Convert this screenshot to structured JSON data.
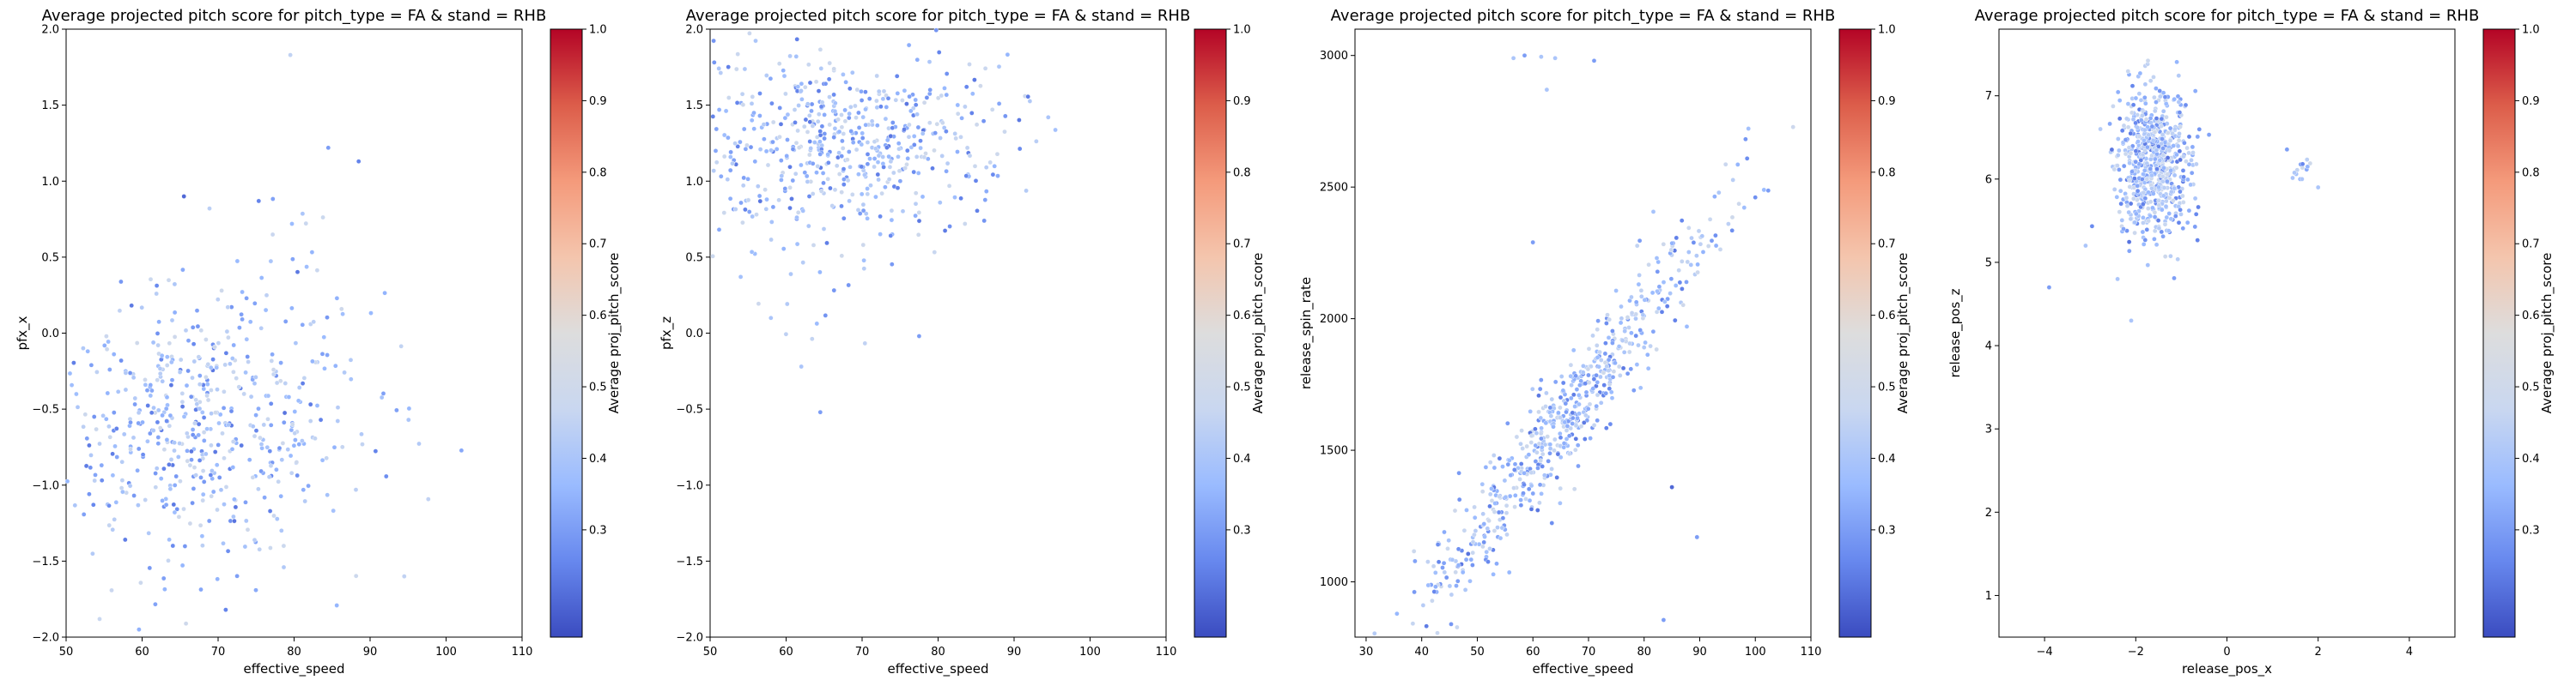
{
  "colorbar_ticks": [
    0.3,
    0.4,
    0.5,
    0.6,
    0.7,
    0.8,
    0.9,
    1.0
  ],
  "colormap": [
    "#3b4cc0",
    "#6788ee",
    "#9abbff",
    "#c9d7f0",
    "#dddddd",
    "#f4c5ad",
    "#f49a7b",
    "#dc5d4a",
    "#b40426"
  ],
  "chart_data": [
    {
      "type": "scatter",
      "title": "Average projected pitch score for pitch_type = FA & stand = RHB",
      "xlabel": "effective_speed",
      "ylabel": "pfx_x",
      "colorbar_label": "Average proj_pitch_score",
      "xlim": [
        50,
        110
      ],
      "ylim": [
        -2.0,
        2.0
      ],
      "colorbar_range": [
        0.15,
        1.0
      ],
      "xticks": [
        "50",
        "60",
        "70",
        "80",
        "90",
        "100",
        "110"
      ],
      "yticks": [
        "−2.0",
        "−1.5",
        "−1.0",
        "−0.5",
        "0.0",
        "0.5",
        "1.0",
        "1.5",
        "2.0"
      ],
      "clusters": [
        {
          "x_center": 66,
          "y_center": -0.6,
          "x_spread": 11,
          "y_spread": 0.45,
          "count": 560
        },
        {
          "x_center": 80,
          "y_center": 0.6,
          "x_spread": 3,
          "y_spread": 0.3,
          "count": 20
        }
      ],
      "points": [
        {
          "x": 79.5,
          "y": 1.83,
          "c": 0.45
        },
        {
          "x": 84.5,
          "y": 1.22,
          "c": 0.3
        },
        {
          "x": 88.5,
          "y": 1.13,
          "c": 0.25
        },
        {
          "x": 65.5,
          "y": 0.9,
          "c": 0.2
        },
        {
          "x": 94.5,
          "y": -1.6,
          "c": 0.45
        },
        {
          "x": 71,
          "y": -1.82,
          "c": 0.25
        }
      ]
    },
    {
      "type": "scatter",
      "title": "Average projected pitch score for pitch_type = FA & stand = RHB",
      "xlabel": "effective_speed",
      "ylabel": "pfx_z",
      "colorbar_label": "Average proj_pitch_score",
      "xlim": [
        50,
        110
      ],
      "ylim": [
        -2.0,
        2.0
      ],
      "colorbar_range": [
        0.15,
        1.0
      ],
      "xticks": [
        "50",
        "60",
        "70",
        "80",
        "90",
        "100",
        "110"
      ],
      "yticks": [
        "−2.0",
        "−1.5",
        "−1.0",
        "−0.5",
        "0.0",
        "0.5",
        "1.0",
        "1.5",
        "2.0"
      ],
      "clusters": [
        {
          "x_center": 68,
          "y_center": 1.25,
          "x_spread": 11,
          "y_spread": 0.3,
          "count": 560
        },
        {
          "x_center": 62,
          "y_center": 0.5,
          "x_spread": 7,
          "y_spread": 0.35,
          "count": 25
        }
      ],
      "points": [
        {
          "x": 64.5,
          "y": -0.52,
          "c": 0.3
        },
        {
          "x": 62,
          "y": -0.22,
          "c": 0.4
        },
        {
          "x": 58,
          "y": 0.1,
          "c": 0.4
        },
        {
          "x": 77.5,
          "y": -0.02,
          "c": 0.3
        },
        {
          "x": 94.5,
          "y": 1.42,
          "c": 0.4
        }
      ]
    },
    {
      "type": "scatter",
      "title": "Average projected pitch score for pitch_type = FA & stand = RHB",
      "xlabel": "effective_speed",
      "ylabel": "release_spin_rate",
      "colorbar_label": "Average proj_pitch_score",
      "xlim": [
        28,
        110
      ],
      "ylim": [
        790,
        3100
      ],
      "colorbar_range": [
        0.15,
        1.0
      ],
      "xticks": [
        "30",
        "40",
        "50",
        "60",
        "70",
        "80",
        "90",
        "100",
        "110"
      ],
      "yticks": [
        "1000",
        "1500",
        "2000",
        "2500",
        "3000"
      ],
      "clusters": [
        {
          "x_center": 66,
          "y_center": 1620,
          "x_spread": 13,
          "y_spread": 110,
          "count": 620,
          "slope": 27
        }
      ],
      "points": [
        {
          "x": 56.5,
          "y": 2990,
          "c": 0.4
        },
        {
          "x": 58.5,
          "y": 3000,
          "c": 0.3
        },
        {
          "x": 61.5,
          "y": 2995,
          "c": 0.4
        },
        {
          "x": 64,
          "y": 2990,
          "c": 0.4
        },
        {
          "x": 71,
          "y": 2980,
          "c": 0.3
        },
        {
          "x": 62.5,
          "y": 2870,
          "c": 0.4
        },
        {
          "x": 85,
          "y": 1360,
          "c": 0.2
        },
        {
          "x": 89.5,
          "y": 1170,
          "c": 0.3
        },
        {
          "x": 83.5,
          "y": 855,
          "c": 0.3
        },
        {
          "x": 60,
          "y": 2290,
          "c": 0.3
        }
      ]
    },
    {
      "type": "scatter",
      "title": "Average projected pitch score for pitch_type = FA & stand = RHB",
      "xlabel": "release_pos_x",
      "ylabel": "release_pos_z",
      "colorbar_label": "Average proj_pitch_score",
      "xlim": [
        -5,
        5
      ],
      "ylim": [
        0.5,
        7.8
      ],
      "colorbar_range": [
        0.15,
        1.0
      ],
      "xticks": [
        "−4",
        "−2",
        "0",
        "2",
        "4"
      ],
      "yticks": [
        "1",
        "2",
        "3",
        "4",
        "5",
        "6",
        "7"
      ],
      "clusters": [
        {
          "x_center": -1.6,
          "y_center": 6.2,
          "x_spread": 0.4,
          "y_spread": 0.45,
          "count": 650
        },
        {
          "x_center": 1.6,
          "y_center": 6.1,
          "x_spread": 0.12,
          "y_spread": 0.08,
          "count": 14
        }
      ],
      "points": [
        {
          "x": -3.9,
          "y": 4.7,
          "c": 0.3
        },
        {
          "x": -2.4,
          "y": 4.8,
          "c": 0.4
        },
        {
          "x": -2.1,
          "y": 4.3,
          "c": 0.4
        },
        {
          "x": 2.0,
          "y": 5.9,
          "c": 0.4
        },
        {
          "x": -3.1,
          "y": 5.2,
          "c": 0.4
        }
      ]
    }
  ]
}
